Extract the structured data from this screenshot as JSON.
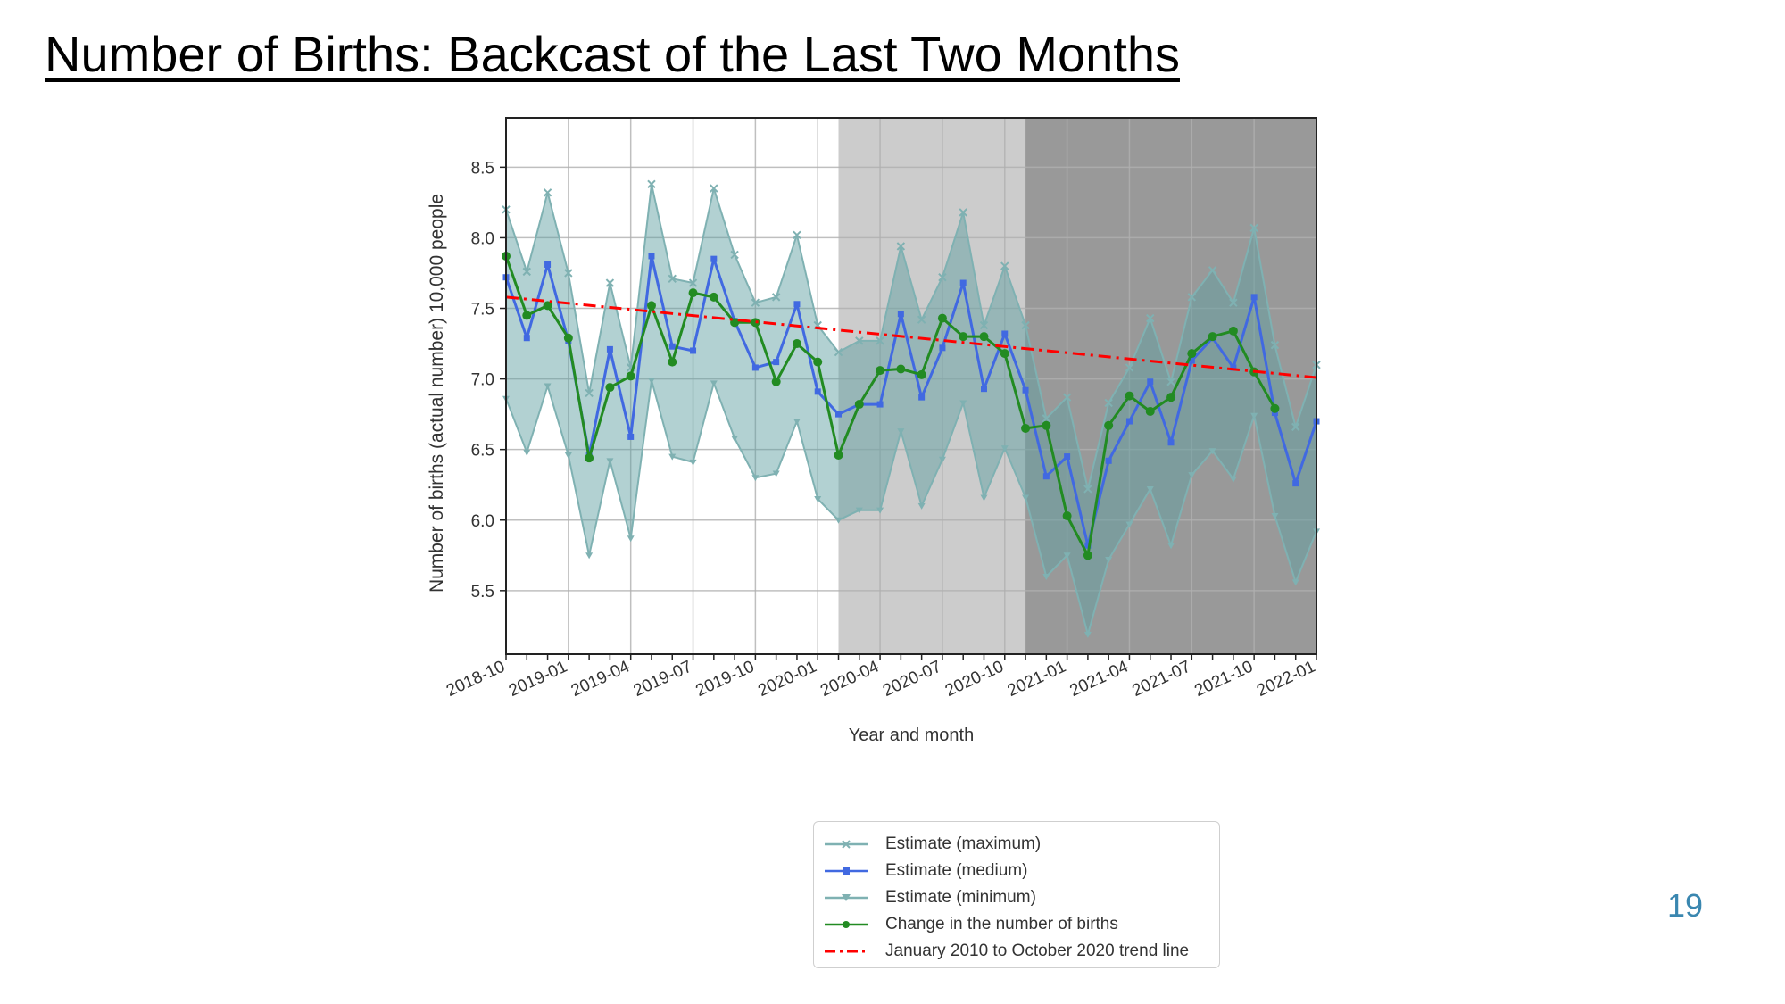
{
  "title": "Number of Births: Backcast of the Last Two Months",
  "page_number": "19",
  "colors": {
    "band": "#5e9ea0",
    "band_line": "#7fb1b2",
    "medium": "#4169e1",
    "change": "#228b22",
    "trend": "#ff0000",
    "shade_light": "#cccccc",
    "shade_dark": "#999999"
  },
  "chart_data": {
    "type": "line",
    "title": "",
    "xlabel": "Year and month",
    "ylabel": "Number of births (actual number) 10,000 people",
    "ylim": [
      5.05,
      8.85
    ],
    "x_start": "2018-10",
    "x_end": "2022-01",
    "yticks": [
      "5.5",
      "6.0",
      "6.5",
      "7.0",
      "7.5",
      "8.0",
      "8.5"
    ],
    "xticks": [
      "2018-10",
      "2019-01",
      "2019-04",
      "2019-07",
      "2019-10",
      "2020-01",
      "2020-04",
      "2020-07",
      "2020-10",
      "2021-01",
      "2021-04",
      "2021-07",
      "2021-10",
      "2022-01"
    ],
    "grid": true,
    "shaded_regions": [
      {
        "start": "2020-02",
        "end": "2020-11",
        "shade": "light"
      },
      {
        "start": "2020-11",
        "end": "2022-01",
        "shade": "dark"
      }
    ],
    "months": [
      "2018-10",
      "2018-11",
      "2018-12",
      "2019-01",
      "2019-02",
      "2019-03",
      "2019-04",
      "2019-05",
      "2019-06",
      "2019-07",
      "2019-08",
      "2019-09",
      "2019-10",
      "2019-11",
      "2019-12",
      "2020-01",
      "2020-02",
      "2020-03",
      "2020-04",
      "2020-05",
      "2020-06",
      "2020-07",
      "2020-08",
      "2020-09",
      "2020-10",
      "2020-11",
      "2020-12",
      "2021-01",
      "2021-02",
      "2021-03",
      "2021-04",
      "2021-05",
      "2021-06",
      "2021-07",
      "2021-08",
      "2021-09",
      "2021-10",
      "2021-11",
      "2021-12",
      "2022-01"
    ],
    "series": [
      {
        "name": "Estimate (maximum)",
        "values": [
          8.2,
          7.76,
          8.32,
          7.75,
          6.9,
          7.68,
          7.08,
          8.38,
          7.71,
          7.68,
          8.35,
          7.88,
          7.54,
          7.58,
          8.02,
          7.38,
          7.19,
          7.27,
          7.27,
          7.94,
          7.42,
          7.72,
          8.18,
          7.38,
          7.8,
          7.38,
          6.72,
          6.87,
          6.22,
          6.83,
          7.08,
          7.43,
          6.98,
          7.58,
          7.77,
          7.54,
          8.07,
          7.24,
          6.66,
          7.1
        ]
      },
      {
        "name": "Estimate (medium)",
        "values": [
          7.72,
          7.29,
          7.81,
          7.27,
          6.46,
          7.21,
          6.59,
          7.87,
          7.23,
          7.2,
          7.85,
          7.41,
          7.08,
          7.12,
          7.53,
          6.91,
          6.75,
          6.82,
          6.82,
          7.46,
          6.87,
          7.22,
          7.68,
          6.93,
          7.32,
          6.92,
          6.31,
          6.45,
          5.82,
          6.42,
          6.7,
          6.98,
          6.55,
          7.13,
          7.29,
          7.08,
          7.58,
          6.76,
          6.26,
          6.7
        ]
      },
      {
        "name": "Estimate (minimum)",
        "values": [
          6.86,
          6.48,
          6.95,
          6.46,
          5.75,
          6.42,
          5.87,
          6.99,
          6.45,
          6.41,
          6.97,
          6.58,
          6.3,
          6.33,
          6.7,
          6.15,
          6.0,
          6.07,
          6.07,
          6.63,
          6.1,
          6.43,
          6.83,
          6.16,
          6.51,
          6.16,
          5.6,
          5.75,
          5.19,
          5.72,
          5.97,
          6.22,
          5.82,
          6.32,
          6.49,
          6.29,
          6.74,
          6.03,
          5.56,
          5.92
        ]
      },
      {
        "name": "Change in the number of births",
        "values": [
          7.87,
          7.45,
          7.52,
          7.29,
          6.44,
          6.94,
          7.02,
          7.52,
          7.12,
          7.61,
          7.58,
          7.4,
          7.4,
          6.98,
          7.25,
          7.12,
          6.46,
          6.82,
          7.06,
          7.07,
          7.03,
          7.43,
          7.3,
          7.3,
          7.18,
          6.65,
          6.67,
          6.03,
          5.75,
          6.67,
          6.88,
          6.77,
          6.87,
          7.18,
          7.3,
          7.34,
          7.05,
          6.79,
          null,
          null
        ]
      },
      {
        "name": "January 2010 to October 2020 trend line",
        "start": 7.58,
        "end": 7.01
      }
    ]
  },
  "legend": [
    {
      "label": "Estimate (maximum)",
      "kind": "max"
    },
    {
      "label": "Estimate (medium)",
      "kind": "medium"
    },
    {
      "label": "Estimate (minimum)",
      "kind": "min"
    },
    {
      "label": "Change in the number of births",
      "kind": "change"
    },
    {
      "label": "January 2010 to October 2020 trend line",
      "kind": "trend"
    }
  ]
}
